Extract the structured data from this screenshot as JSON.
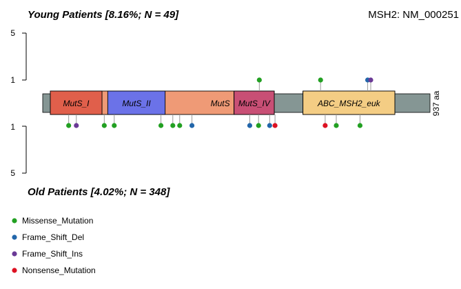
{
  "chart_data": {
    "type": "lollipop",
    "gene_label": "MSH2: NM_000251",
    "protein_length_label": "937 aa",
    "protein_length": 937,
    "top_group": {
      "title": "Young Patients [8.16%; N = 49]"
    },
    "bottom_group": {
      "title": "Old Patients [4.02%; N = 348]"
    },
    "y_ticks_top": [
      "5",
      "1"
    ],
    "y_ticks_bottom": [
      "1",
      "5"
    ],
    "domains": [
      {
        "name": "MutS_I",
        "start": 20,
        "end": 155,
        "color": "#e05f4b"
      },
      {
        "name": "MutS_II",
        "start": 170,
        "end": 320,
        "color": "#6b72e8"
      },
      {
        "name": "MutS",
        "start": 155,
        "end": 500,
        "color": "#ef9a76",
        "label_end": true
      },
      {
        "name": "MutS_IV",
        "start": 500,
        "end": 605,
        "color": "#c84f75"
      },
      {
        "name": "ABC_MSH2_euk",
        "start": 680,
        "end": 920,
        "color": "#f4cd84"
      }
    ],
    "mutation_types": [
      {
        "name": "Missense_Mutation",
        "color": "#22a022"
      },
      {
        "name": "Frame_Shift_Del",
        "color": "#2266aa"
      },
      {
        "name": "Frame_Shift_Ins",
        "color": "#6a3a96"
      },
      {
        "name": "Nonsense_Mutation",
        "color": "#dd1122"
      }
    ],
    "top_mutations": [
      {
        "pos": 566,
        "count": 1,
        "type": "Missense_Mutation"
      },
      {
        "pos": 726,
        "count": 1,
        "type": "Missense_Mutation"
      },
      {
        "pos": 849,
        "count": 1,
        "type": "Frame_Shift_Del"
      },
      {
        "pos": 857,
        "count": 1,
        "type": "Frame_Shift_Ins"
      }
    ],
    "bottom_mutations": [
      {
        "pos": 68,
        "count": 1,
        "type": "Missense_Mutation"
      },
      {
        "pos": 88,
        "count": 1,
        "type": "Frame_Shift_Ins"
      },
      {
        "pos": 161,
        "count": 1,
        "type": "Missense_Mutation"
      },
      {
        "pos": 187,
        "count": 1,
        "type": "Missense_Mutation"
      },
      {
        "pos": 309,
        "count": 1,
        "type": "Missense_Mutation"
      },
      {
        "pos": 340,
        "count": 1,
        "type": "Missense_Mutation"
      },
      {
        "pos": 358,
        "count": 1,
        "type": "Missense_Mutation"
      },
      {
        "pos": 390,
        "count": 1,
        "type": "Frame_Shift_Del"
      },
      {
        "pos": 541,
        "count": 1,
        "type": "Frame_Shift_Del"
      },
      {
        "pos": 564,
        "count": 1,
        "type": "Missense_Mutation"
      },
      {
        "pos": 593,
        "count": 1,
        "type": "Frame_Shift_Del"
      },
      {
        "pos": 607,
        "count": 1,
        "type": "Nonsense_Mutation"
      },
      {
        "pos": 738,
        "count": 1,
        "type": "Nonsense_Mutation"
      },
      {
        "pos": 767,
        "count": 1,
        "type": "Missense_Mutation"
      },
      {
        "pos": 829,
        "count": 1,
        "type": "Missense_Mutation"
      }
    ]
  }
}
